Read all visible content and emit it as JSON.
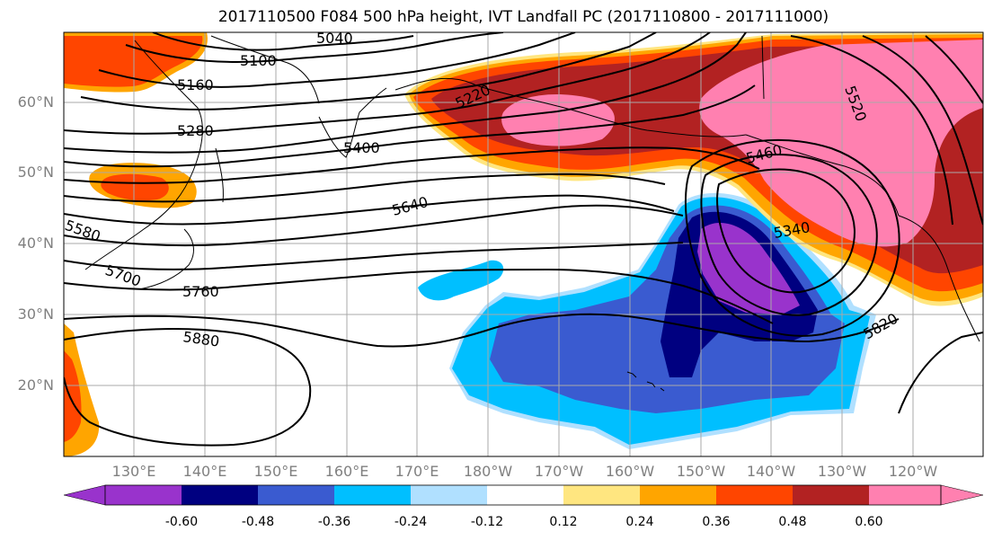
{
  "title": "2017110500 F084 500 hPa height, IVT Landfall PC (2017110800 - 2017111000)",
  "lat_labels": [
    "60°N",
    "50°N",
    "40°N",
    "30°N",
    "20°N"
  ],
  "lon_labels": [
    "130°E",
    "140°E",
    "150°E",
    "160°E",
    "170°E",
    "180°W",
    "170°W",
    "160°W",
    "150°W",
    "140°W",
    "130°W",
    "120°W"
  ],
  "contour_labels": [
    "5040",
    "5100",
    "5160",
    "5220",
    "5280",
    "5340",
    "5400",
    "5460",
    "5520",
    "5580",
    "5640",
    "5700",
    "5760",
    "5820",
    "5880"
  ],
  "colorbar": {
    "ticks": [
      "-0.60",
      "-0.48",
      "-0.36",
      "-0.24",
      "-0.12",
      "0.12",
      "0.24",
      "0.36",
      "0.48",
      "0.60"
    ],
    "colors": [
      "#9933cc",
      "#000080",
      "#3a5bd0",
      "#00bfff",
      "#b0e0ff",
      "#ffffff",
      "#ffe680",
      "#ffa500",
      "#ff4500",
      "#b22222",
      "#ff80b0"
    ]
  }
}
